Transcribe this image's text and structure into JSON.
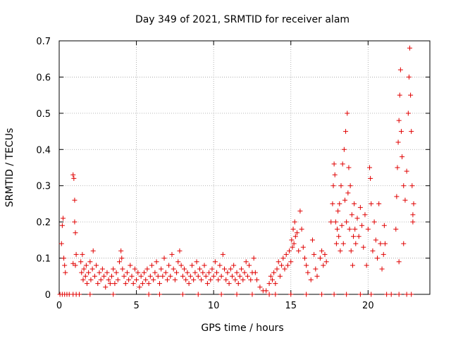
{
  "chart_data": {
    "type": "scatter",
    "title": "Day 349 of 2021, SRMTID for receiver alam",
    "xlabel": "GPS time / hours",
    "ylabel": "SRMTID / TECUs",
    "xlim": [
      0,
      24
    ],
    "ylim": [
      0,
      0.7
    ],
    "xticks": [
      0,
      5,
      10,
      15,
      20
    ],
    "yticks": [
      0,
      0.1,
      0.2,
      0.3,
      0.4,
      0.5,
      0.6,
      0.7
    ],
    "grid": true,
    "marker": "+",
    "color": "#e00000",
    "series": [
      {
        "name": "SRMTID",
        "points": [
          [
            0.15,
            0.14
          ],
          [
            0.2,
            0.19
          ],
          [
            0.25,
            0.21
          ],
          [
            0.3,
            0.1
          ],
          [
            0.35,
            0.08
          ],
          [
            0.4,
            0.06
          ],
          [
            0.9,
            0.33
          ],
          [
            0.95,
            0.32
          ],
          [
            1.0,
            0.26
          ],
          [
            1.0,
            0.2
          ],
          [
            1.05,
            0.17
          ],
          [
            1.1,
            0.11
          ],
          [
            0.9,
            0.085
          ],
          [
            1.05,
            0.08
          ],
          [
            0.05,
            0.0
          ],
          [
            0.2,
            0.0
          ],
          [
            0.35,
            0.0
          ],
          [
            0.5,
            0.0
          ],
          [
            0.65,
            0.0
          ],
          [
            0.9,
            0.0
          ],
          [
            1.1,
            0.0
          ],
          [
            1.3,
            0.0
          ],
          [
            1.4,
            0.09
          ],
          [
            1.45,
            0.06
          ],
          [
            1.5,
            0.11
          ],
          [
            1.55,
            0.04
          ],
          [
            1.6,
            0.07
          ],
          [
            1.7,
            0.05
          ],
          [
            1.75,
            0.08
          ],
          [
            1.8,
            0.03
          ],
          [
            1.9,
            0.06
          ],
          [
            2.0,
            0.09
          ],
          [
            2.05,
            0.04
          ],
          [
            2.15,
            0.07
          ],
          [
            2.2,
            0.12
          ],
          [
            2.3,
            0.05
          ],
          [
            2.4,
            0.08
          ],
          [
            2.5,
            0.03
          ],
          [
            2.6,
            0.06
          ],
          [
            2.7,
            0.04
          ],
          [
            2.8,
            0.07
          ],
          [
            2.9,
            0.05
          ],
          [
            3.0,
            0.02
          ],
          [
            3.1,
            0.06
          ],
          [
            3.2,
            0.04
          ],
          [
            3.3,
            0.03
          ],
          [
            3.4,
            0.05
          ],
          [
            3.5,
            0.07
          ],
          [
            3.6,
            0.03
          ],
          [
            3.7,
            0.06
          ],
          [
            3.8,
            0.04
          ],
          [
            3.9,
            0.09
          ],
          [
            4.0,
            0.12
          ],
          [
            4.05,
            0.1
          ],
          [
            4.1,
            0.07
          ],
          [
            4.2,
            0.05
          ],
          [
            4.3,
            0.03
          ],
          [
            4.4,
            0.06
          ],
          [
            4.5,
            0.04
          ],
          [
            4.6,
            0.08
          ],
          [
            4.7,
            0.05
          ],
          [
            4.8,
            0.03
          ],
          [
            4.9,
            0.07
          ],
          [
            5.0,
            0.04
          ],
          [
            5.1,
            0.06
          ],
          [
            5.2,
            0.02
          ],
          [
            5.3,
            0.05
          ],
          [
            5.4,
            0.03
          ],
          [
            5.5,
            0.06
          ],
          [
            5.6,
            0.04
          ],
          [
            5.7,
            0.07
          ],
          [
            5.8,
            0.03
          ],
          [
            5.9,
            0.05
          ],
          [
            6.0,
            0.08
          ],
          [
            6.1,
            0.04
          ],
          [
            6.2,
            0.06
          ],
          [
            6.3,
            0.09
          ],
          [
            6.4,
            0.05
          ],
          [
            6.5,
            0.03
          ],
          [
            6.6,
            0.07
          ],
          [
            6.7,
            0.05
          ],
          [
            6.8,
            0.1
          ],
          [
            6.9,
            0.06
          ],
          [
            7.0,
            0.04
          ],
          [
            7.1,
            0.08
          ],
          [
            7.2,
            0.05
          ],
          [
            7.3,
            0.11
          ],
          [
            7.4,
            0.07
          ],
          [
            7.5,
            0.04
          ],
          [
            7.6,
            0.06
          ],
          [
            7.7,
            0.09
          ],
          [
            7.8,
            0.12
          ],
          [
            7.9,
            0.08
          ],
          [
            8.0,
            0.05
          ],
          [
            8.1,
            0.07
          ],
          [
            8.2,
            0.04
          ],
          [
            8.3,
            0.06
          ],
          [
            8.4,
            0.03
          ],
          [
            8.5,
            0.05
          ],
          [
            8.6,
            0.08
          ],
          [
            8.7,
            0.04
          ],
          [
            8.8,
            0.06
          ],
          [
            8.9,
            0.09
          ],
          [
            9.0,
            0.05
          ],
          [
            9.1,
            0.07
          ],
          [
            9.2,
            0.04
          ],
          [
            9.3,
            0.06
          ],
          [
            9.4,
            0.08
          ],
          [
            9.5,
            0.05
          ],
          [
            9.6,
            0.03
          ],
          [
            9.7,
            0.06
          ],
          [
            9.8,
            0.04
          ],
          [
            9.9,
            0.07
          ],
          [
            10.0,
            0.05
          ],
          [
            10.1,
            0.09
          ],
          [
            10.2,
            0.06
          ],
          [
            10.3,
            0.04
          ],
          [
            10.4,
            0.08
          ],
          [
            10.5,
            0.05
          ],
          [
            10.6,
            0.11
          ],
          [
            10.7,
            0.07
          ],
          [
            10.8,
            0.04
          ],
          [
            10.9,
            0.06
          ],
          [
            11.0,
            0.03
          ],
          [
            11.1,
            0.07
          ],
          [
            11.2,
            0.05
          ],
          [
            11.3,
            0.08
          ],
          [
            11.4,
            0.04
          ],
          [
            11.5,
            0.06
          ],
          [
            11.6,
            0.03
          ],
          [
            11.7,
            0.05
          ],
          [
            11.8,
            0.07
          ],
          [
            11.9,
            0.04
          ],
          [
            12.0,
            0.06
          ],
          [
            12.1,
            0.09
          ],
          [
            12.2,
            0.05
          ],
          [
            12.3,
            0.08
          ],
          [
            12.4,
            0.04
          ],
          [
            12.5,
            0.06
          ],
          [
            12.6,
            0.1
          ],
          [
            12.7,
            0.06
          ],
          [
            12.8,
            0.04
          ],
          [
            13.0,
            0.02
          ],
          [
            13.2,
            0.01
          ],
          [
            13.4,
            0.01
          ],
          [
            13.6,
            0.03
          ],
          [
            13.7,
            0.05
          ],
          [
            13.8,
            0.04
          ],
          [
            13.9,
            0.06
          ],
          [
            14.0,
            0.03
          ],
          [
            14.1,
            0.07
          ],
          [
            14.2,
            0.09
          ],
          [
            14.3,
            0.05
          ],
          [
            14.4,
            0.08
          ],
          [
            14.5,
            0.1
          ],
          [
            14.6,
            0.07
          ],
          [
            14.7,
            0.11
          ],
          [
            14.8,
            0.08
          ],
          [
            14.9,
            0.12
          ],
          [
            15.0,
            0.09
          ],
          [
            15.05,
            0.15
          ],
          [
            15.1,
            0.13
          ],
          [
            15.15,
            0.18
          ],
          [
            15.2,
            0.14
          ],
          [
            15.25,
            0.2
          ],
          [
            15.3,
            0.16
          ],
          [
            15.4,
            0.17
          ],
          [
            15.5,
            0.12
          ],
          [
            15.6,
            0.23
          ],
          [
            15.7,
            0.18
          ],
          [
            15.8,
            0.13
          ],
          [
            15.9,
            0.1
          ],
          [
            16.0,
            0.08
          ],
          [
            16.1,
            0.06
          ],
          [
            16.3,
            0.04
          ],
          [
            16.4,
            0.15
          ],
          [
            16.5,
            0.11
          ],
          [
            16.6,
            0.07
          ],
          [
            16.7,
            0.05
          ],
          [
            16.9,
            0.1
          ],
          [
            17.0,
            0.12
          ],
          [
            17.1,
            0.08
          ],
          [
            17.2,
            0.11
          ],
          [
            17.3,
            0.09
          ],
          [
            17.6,
            0.2
          ],
          [
            17.7,
            0.25
          ],
          [
            17.75,
            0.3
          ],
          [
            17.8,
            0.36
          ],
          [
            17.85,
            0.33
          ],
          [
            17.9,
            0.2
          ],
          [
            17.95,
            0.14
          ],
          [
            18.0,
            0.18
          ],
          [
            18.05,
            0.23
          ],
          [
            18.1,
            0.16
          ],
          [
            18.15,
            0.25
          ],
          [
            18.2,
            0.12
          ],
          [
            18.25,
            0.3
          ],
          [
            18.3,
            0.19
          ],
          [
            18.35,
            0.36
          ],
          [
            18.4,
            0.14
          ],
          [
            18.45,
            0.4
          ],
          [
            18.5,
            0.26
          ],
          [
            18.55,
            0.45
          ],
          [
            18.6,
            0.2
          ],
          [
            18.65,
            0.5
          ],
          [
            18.7,
            0.28
          ],
          [
            18.75,
            0.35
          ],
          [
            18.8,
            0.18
          ],
          [
            18.85,
            0.3
          ],
          [
            18.9,
            0.12
          ],
          [
            18.95,
            0.22
          ],
          [
            19.0,
            0.08
          ],
          [
            19.05,
            0.16
          ],
          [
            19.1,
            0.25
          ],
          [
            19.15,
            0.18
          ],
          [
            19.2,
            0.14
          ],
          [
            19.3,
            0.21
          ],
          [
            19.4,
            0.16
          ],
          [
            19.5,
            0.24
          ],
          [
            19.6,
            0.19
          ],
          [
            19.7,
            0.13
          ],
          [
            19.8,
            0.22
          ],
          [
            19.9,
            0.08
          ],
          [
            20.0,
            0.18
          ],
          [
            20.1,
            0.35
          ],
          [
            20.15,
            0.32
          ],
          [
            20.2,
            0.25
          ],
          [
            20.3,
            0.12
          ],
          [
            20.4,
            0.2
          ],
          [
            20.5,
            0.15
          ],
          [
            20.6,
            0.1
          ],
          [
            20.7,
            0.25
          ],
          [
            20.8,
            0.14
          ],
          [
            20.9,
            0.07
          ],
          [
            21.0,
            0.11
          ],
          [
            21.05,
            0.19
          ],
          [
            21.1,
            0.14
          ],
          [
            21.8,
            0.18
          ],
          [
            21.85,
            0.27
          ],
          [
            21.9,
            0.35
          ],
          [
            21.95,
            0.42
          ],
          [
            22.0,
            0.48
          ],
          [
            22.05,
            0.55
          ],
          [
            22.1,
            0.62
          ],
          [
            22.15,
            0.45
          ],
          [
            22.2,
            0.38
          ],
          [
            22.3,
            0.3
          ],
          [
            22.4,
            0.26
          ],
          [
            22.5,
            0.34
          ],
          [
            22.6,
            0.5
          ],
          [
            22.65,
            0.6
          ],
          [
            22.7,
            0.68
          ],
          [
            22.75,
            0.55
          ],
          [
            22.8,
            0.45
          ],
          [
            22.85,
            0.3
          ],
          [
            22.9,
            0.2
          ],
          [
            22.95,
            0.25
          ],
          [
            22.9,
            0.22
          ],
          [
            22.3,
            0.14
          ],
          [
            22.0,
            0.09
          ],
          [
            2.0,
            0.0
          ],
          [
            3.5,
            0.0
          ],
          [
            5.8,
            0.0
          ],
          [
            6.5,
            0.0
          ],
          [
            8.0,
            0.0
          ],
          [
            9.0,
            0.0
          ],
          [
            10.5,
            0.0
          ],
          [
            11.5,
            0.0
          ],
          [
            12.5,
            0.0
          ],
          [
            13.6,
            0.0
          ],
          [
            14.0,
            0.0
          ],
          [
            15.0,
            0.0
          ],
          [
            16.0,
            0.0
          ],
          [
            17.0,
            0.0
          ],
          [
            17.8,
            0.0
          ],
          [
            18.6,
            0.0
          ],
          [
            19.5,
            0.0
          ],
          [
            20.2,
            0.0
          ],
          [
            21.2,
            0.0
          ],
          [
            21.5,
            0.0
          ],
          [
            22.0,
            0.0
          ],
          [
            22.5,
            0.0
          ],
          [
            22.8,
            0.0
          ]
        ]
      }
    ]
  }
}
